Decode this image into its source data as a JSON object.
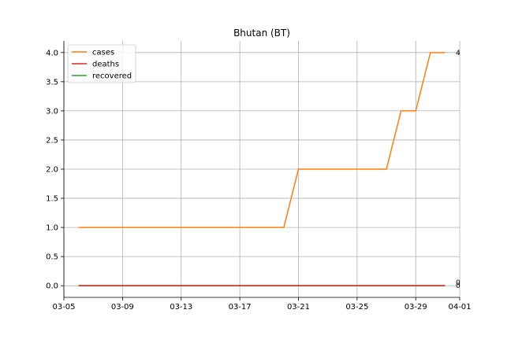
{
  "chart_data": {
    "type": "line",
    "title": "Bhutan (BT)",
    "xlabel": "",
    "ylabel": "",
    "x_ticks": [
      "03-05",
      "03-09",
      "03-13",
      "03-17",
      "03-21",
      "03-25",
      "03-29",
      "04-01"
    ],
    "y_ticks": [
      "0.0",
      "0.5",
      "1.0",
      "1.5",
      "2.0",
      "2.5",
      "3.0",
      "3.5",
      "4.0"
    ],
    "xlim": [
      "2020-03-05",
      "2020-04-01"
    ],
    "ylim": [
      -0.2,
      4.2
    ],
    "grid": true,
    "legend_position": "top-left",
    "x": [
      "2020-03-06",
      "2020-03-07",
      "2020-03-08",
      "2020-03-09",
      "2020-03-10",
      "2020-03-11",
      "2020-03-12",
      "2020-03-13",
      "2020-03-14",
      "2020-03-15",
      "2020-03-16",
      "2020-03-17",
      "2020-03-18",
      "2020-03-19",
      "2020-03-20",
      "2020-03-21",
      "2020-03-22",
      "2020-03-23",
      "2020-03-24",
      "2020-03-25",
      "2020-03-26",
      "2020-03-27",
      "2020-03-28",
      "2020-03-29",
      "2020-03-30",
      "2020-03-31"
    ],
    "series": [
      {
        "name": "cases",
        "color": "#ff7f0e",
        "end_label": "4",
        "values": [
          1,
          1,
          1,
          1,
          1,
          1,
          1,
          1,
          1,
          1,
          1,
          1,
          1,
          1,
          1,
          2,
          2,
          2,
          2,
          2,
          2,
          2,
          3,
          3,
          4,
          4
        ]
      },
      {
        "name": "deaths",
        "color": "#d62728",
        "end_label": "0",
        "values": [
          0,
          0,
          0,
          0,
          0,
          0,
          0,
          0,
          0,
          0,
          0,
          0,
          0,
          0,
          0,
          0,
          0,
          0,
          0,
          0,
          0,
          0,
          0,
          0,
          0,
          0
        ]
      },
      {
        "name": "recovered",
        "color": "#2ca02c",
        "end_label": "0",
        "values": [
          0,
          0,
          0,
          0,
          0,
          0,
          0,
          0,
          0,
          0,
          0,
          0,
          0,
          0,
          0,
          0,
          0,
          0,
          0,
          0,
          0,
          0,
          0,
          0,
          0,
          0
        ]
      }
    ]
  }
}
